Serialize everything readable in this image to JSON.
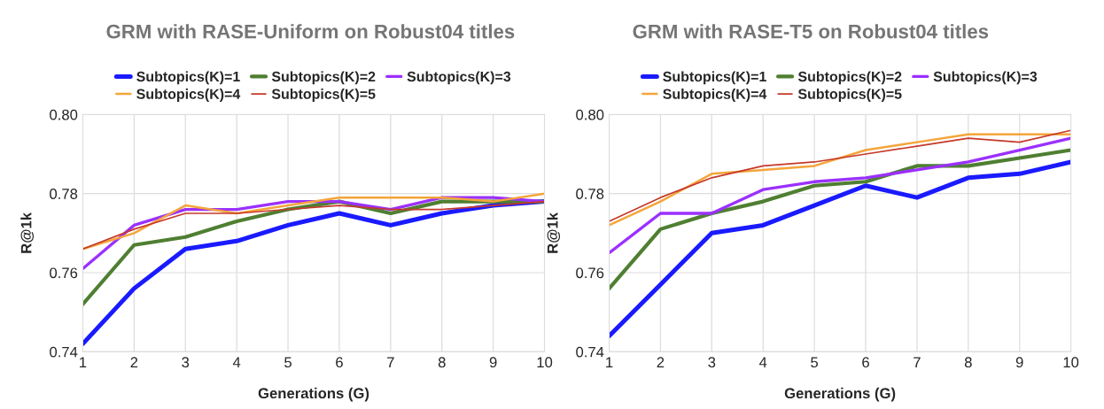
{
  "chart_data": [
    {
      "type": "line",
      "title": "GRM with RASE-Uniform on Robust04 titles",
      "xlabel": "Generations (G)",
      "ylabel": "R@1k",
      "x": [
        1,
        2,
        3,
        4,
        5,
        6,
        7,
        8,
        9,
        10
      ],
      "xlim": [
        1,
        10
      ],
      "xticks": [
        1,
        2,
        3,
        4,
        5,
        6,
        7,
        8,
        9,
        10
      ],
      "ylim": [
        0.74,
        0.8
      ],
      "yticks": [
        {
          "value": 0.74,
          "label": "0.74"
        },
        {
          "value": 0.76,
          "label": "0.76"
        },
        {
          "value": 0.78,
          "label": "0.78"
        },
        {
          "value": 0.8,
          "label": "0.80"
        }
      ],
      "grid": true,
      "legend": "top",
      "marker": "none",
      "line_style": "solid",
      "series": [
        {
          "name": "Subtopics(K)=1",
          "color": "#1a1aff",
          "values": [
            0.742,
            0.756,
            0.766,
            0.768,
            0.772,
            0.775,
            0.772,
            0.775,
            0.777,
            0.778
          ]
        },
        {
          "name": "Subtopics(K)=2",
          "color": "#4f7f32",
          "values": [
            0.752,
            0.767,
            0.769,
            0.773,
            0.776,
            0.778,
            0.775,
            0.778,
            0.778,
            0.778
          ]
        },
        {
          "name": "Subtopics(K)=3",
          "color": "#9b30ff",
          "values": [
            0.761,
            0.772,
            0.776,
            0.776,
            0.778,
            0.778,
            0.776,
            0.779,
            0.779,
            0.778
          ]
        },
        {
          "name": "Subtopics(K)=4",
          "color": "#f4a53a",
          "values": [
            0.766,
            0.77,
            0.777,
            0.775,
            0.777,
            0.779,
            0.779,
            0.779,
            0.778,
            0.78
          ]
        },
        {
          "name": "Subtopics(K)=5",
          "color": "#c5392a",
          "values": [
            0.766,
            0.771,
            0.775,
            0.775,
            0.776,
            0.777,
            0.776,
            0.776,
            0.777,
            0.778
          ]
        }
      ]
    },
    {
      "type": "line",
      "title": "GRM with RASE-T5 on Robust04 titles",
      "xlabel": "Generations (G)",
      "ylabel": "R@1k",
      "x": [
        1,
        2,
        3,
        4,
        5,
        6,
        7,
        8,
        9,
        10
      ],
      "xlim": [
        1,
        10
      ],
      "xticks": [
        1,
        2,
        3,
        4,
        5,
        6,
        7,
        8,
        9,
        10
      ],
      "ylim": [
        0.74,
        0.8
      ],
      "yticks": [
        {
          "value": 0.74,
          "label": "0.74"
        },
        {
          "value": 0.76,
          "label": "0.76"
        },
        {
          "value": 0.78,
          "label": "0.78"
        },
        {
          "value": 0.8,
          "label": "0.80"
        }
      ],
      "grid": true,
      "legend": "top",
      "marker": "none",
      "line_style": "solid",
      "series": [
        {
          "name": "Subtopics(K)=1",
          "color": "#1a1aff",
          "values": [
            0.744,
            0.757,
            0.77,
            0.772,
            0.777,
            0.782,
            0.779,
            0.784,
            0.785,
            0.788
          ]
        },
        {
          "name": "Subtopics(K)=2",
          "color": "#4f7f32",
          "values": [
            0.756,
            0.771,
            0.775,
            0.778,
            0.782,
            0.783,
            0.787,
            0.787,
            0.789,
            0.791
          ]
        },
        {
          "name": "Subtopics(K)=3",
          "color": "#9b30ff",
          "values": [
            0.765,
            0.775,
            0.775,
            0.781,
            0.783,
            0.784,
            0.786,
            0.788,
            0.791,
            0.794
          ]
        },
        {
          "name": "Subtopics(K)=4",
          "color": "#f4a53a",
          "values": [
            0.772,
            0.778,
            0.785,
            0.786,
            0.787,
            0.791,
            0.793,
            0.795,
            0.795,
            0.795
          ]
        },
        {
          "name": "Subtopics(K)=5",
          "color": "#c5392a",
          "values": [
            0.773,
            0.779,
            0.784,
            0.787,
            0.788,
            0.79,
            0.792,
            0.794,
            0.793,
            0.796
          ]
        }
      ]
    }
  ]
}
